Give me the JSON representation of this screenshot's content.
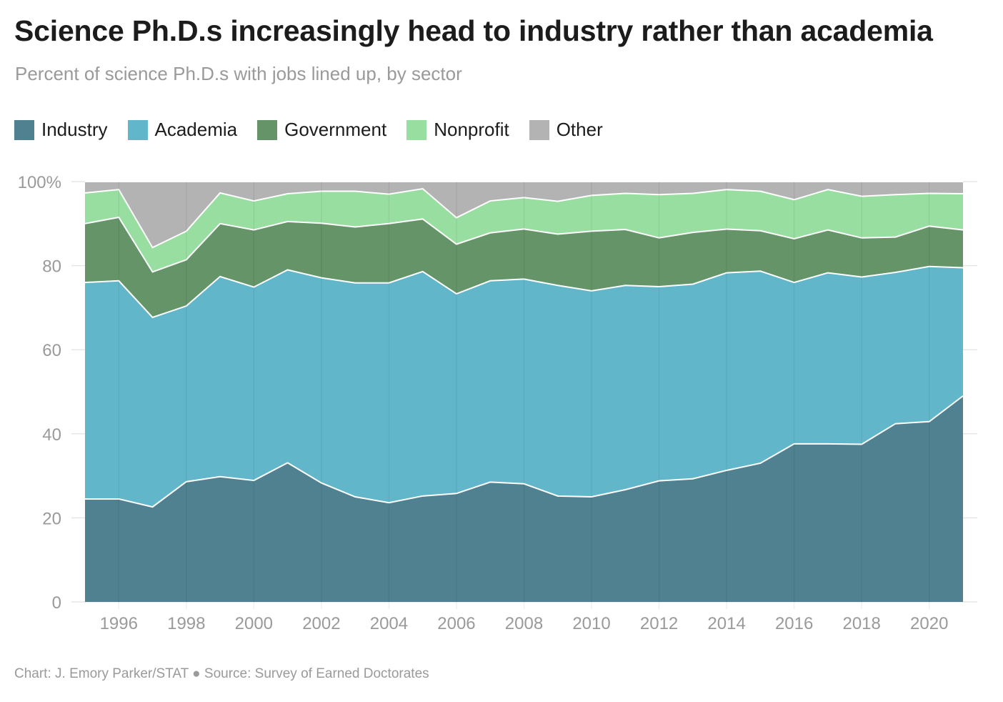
{
  "header": {
    "title": "Science Ph.D.s increasingly head to industry rather than academia",
    "subtitle": "Percent of science Ph.D.s with jobs lined up, by sector"
  },
  "footer": {
    "credit": "Chart: J. Emory Parker/STAT ● Source: Survey of Earned Doctorates"
  },
  "colors": {
    "Industry": "#4f8190",
    "Academia": "#61b7c9",
    "Government": "#649468",
    "Nonprofit": "#99dea1",
    "Other": "#b3b3b3",
    "grid": "#e6e6e6",
    "tick_text": "#9a9a9a"
  },
  "chart_data": {
    "type": "area",
    "stacked": true,
    "x": [
      1995,
      1996,
      1997,
      1998,
      1999,
      2000,
      2001,
      2002,
      2003,
      2004,
      2005,
      2006,
      2007,
      2008,
      2009,
      2010,
      2011,
      2012,
      2013,
      2014,
      2015,
      2016,
      2017,
      2018,
      2019,
      2020,
      2021
    ],
    "series": [
      {
        "name": "Industry",
        "values": [
          24.5,
          24.5,
          22.6,
          28.6,
          29.8,
          28.9,
          33.1,
          28.3,
          25.0,
          23.6,
          25.2,
          25.8,
          28.5,
          28.1,
          25.2,
          25.0,
          26.7,
          28.8,
          29.3,
          31.3,
          33.0,
          37.6,
          37.6,
          37.5,
          42.4,
          42.9,
          49.0
        ]
      },
      {
        "name": "Academia",
        "values": [
          51.5,
          51.9,
          45.1,
          41.8,
          47.6,
          46.0,
          45.9,
          48.8,
          50.9,
          52.3,
          53.4,
          47.5,
          47.9,
          48.7,
          50.1,
          49.0,
          48.6,
          46.2,
          46.3,
          47.0,
          45.7,
          38.4,
          40.7,
          39.8,
          36.0,
          36.9,
          30.5
        ]
      },
      {
        "name": "Government",
        "values": [
          14.0,
          15.1,
          10.8,
          11.0,
          12.6,
          13.6,
          11.5,
          13.0,
          13.3,
          14.1,
          12.5,
          11.8,
          11.4,
          11.9,
          12.2,
          14.2,
          13.3,
          11.6,
          12.3,
          10.4,
          9.6,
          10.4,
          10.2,
          9.3,
          8.4,
          9.6,
          9.0
        ]
      },
      {
        "name": "Nonprofit",
        "values": [
          7.3,
          6.6,
          5.8,
          6.8,
          7.3,
          6.9,
          6.6,
          7.6,
          8.5,
          7.0,
          7.2,
          6.3,
          7.6,
          7.5,
          7.8,
          8.5,
          8.6,
          10.3,
          9.3,
          9.4,
          9.4,
          9.3,
          9.6,
          9.9,
          10.1,
          7.8,
          8.6
        ]
      },
      {
        "name": "Other",
        "values": [
          2.7,
          1.9,
          15.7,
          11.8,
          2.7,
          4.6,
          2.9,
          2.3,
          2.3,
          3.0,
          1.7,
          8.6,
          4.6,
          3.8,
          4.7,
          3.3,
          2.8,
          3.1,
          2.8,
          1.9,
          2.3,
          4.3,
          1.9,
          3.5,
          3.1,
          2.8,
          2.9
        ]
      }
    ],
    "ylim": [
      0,
      100
    ],
    "yticks": [
      "0",
      "20",
      "40",
      "60",
      "80",
      "100%"
    ],
    "ytick_values": [
      0,
      20,
      40,
      60,
      80,
      100
    ],
    "xticks": [
      1996,
      1998,
      2000,
      2002,
      2004,
      2006,
      2008,
      2010,
      2012,
      2014,
      2016,
      2018,
      2020
    ],
    "xlim": [
      1995,
      2021
    ],
    "grid": true,
    "legend_position": "top-left"
  }
}
